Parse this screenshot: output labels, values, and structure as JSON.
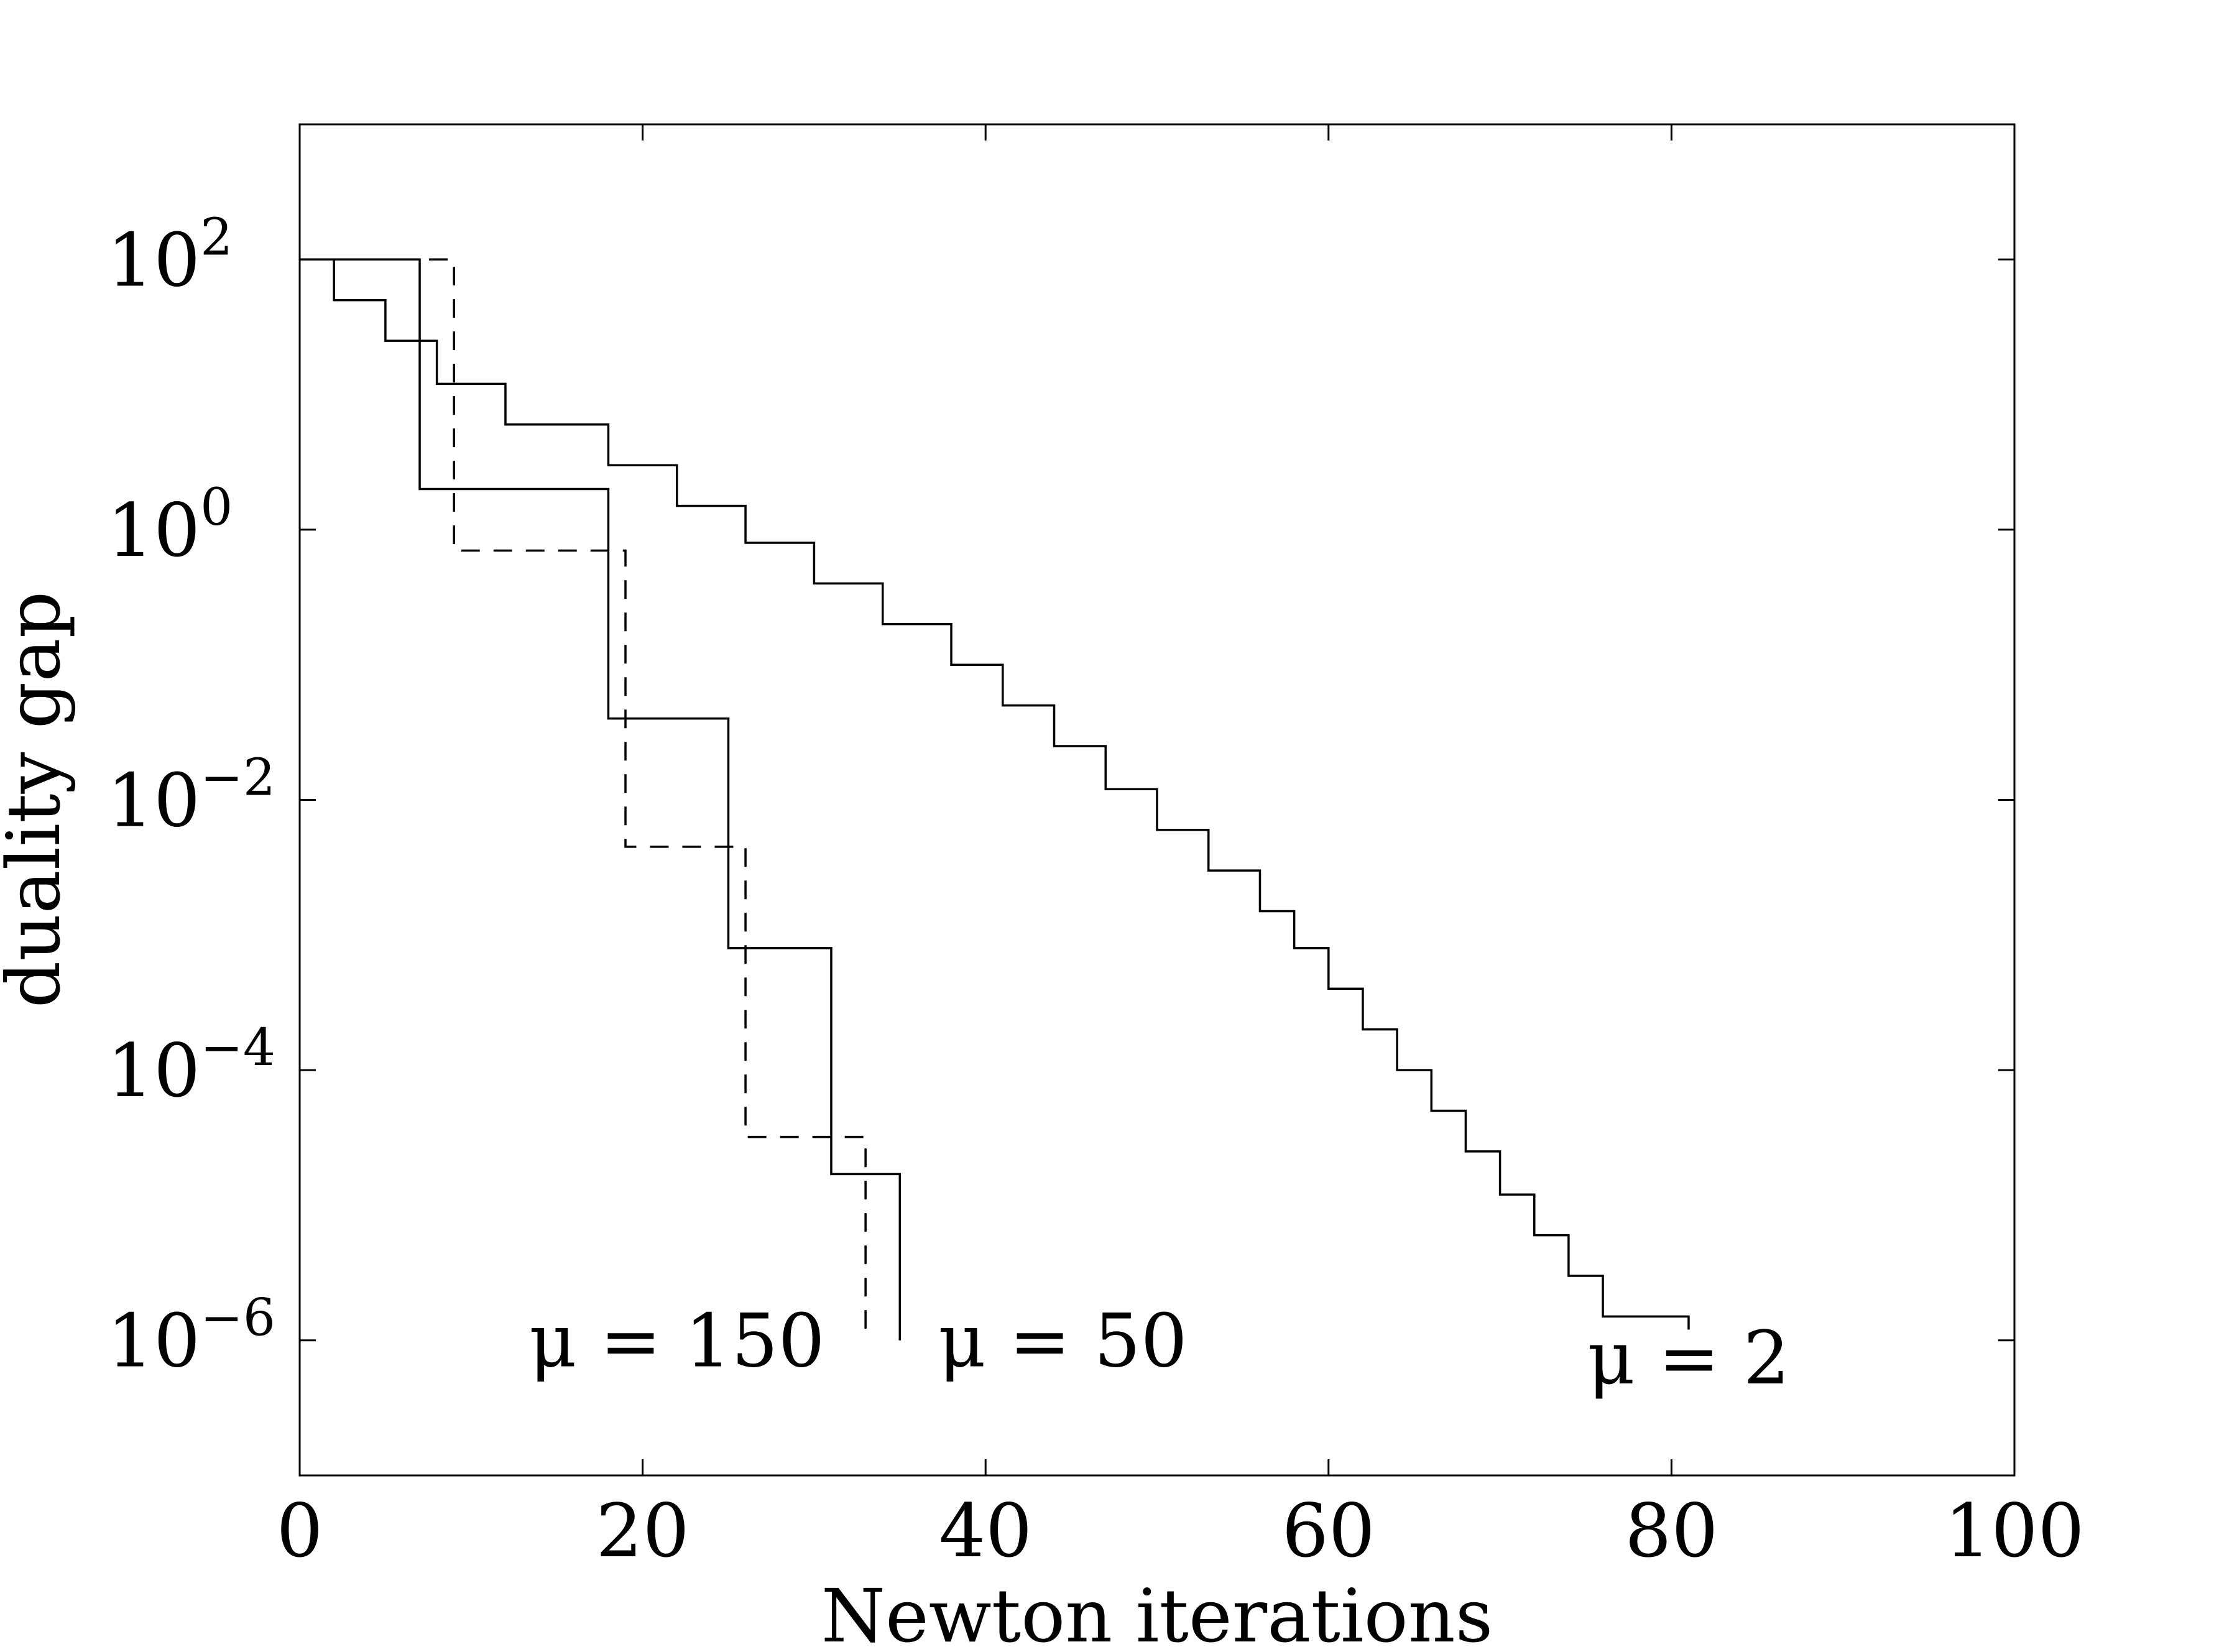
{
  "chart_data": {
    "type": "line",
    "title": "",
    "xlabel": "Newton iterations",
    "ylabel": "duality gap",
    "xlim": [
      0,
      100
    ],
    "ylim": [
      1e-07,
      1000.0
    ],
    "yscale": "log",
    "grid": false,
    "x_ticks": [
      0,
      20,
      40,
      60,
      80,
      100
    ],
    "x_tick_labels": [
      "0",
      "20",
      "40",
      "60",
      "80",
      "100"
    ],
    "y_ticks": [
      {
        "value": 1e-06,
        "base": "10",
        "exp": "−6"
      },
      {
        "value": 0.0001,
        "base": "10",
        "exp": "−4"
      },
      {
        "value": 0.01,
        "base": "10",
        "exp": "−2"
      },
      {
        "value": 1,
        "base": "10",
        "exp": "0"
      },
      {
        "value": 100,
        "base": "10",
        "exp": "2"
      }
    ],
    "series": [
      {
        "dash": "dashed",
        "label": "μ = 150",
        "label_x": 22,
        "label_y": 1e-06,
        "x": [
          0,
          9,
          19,
          26,
          33,
          33
        ],
        "y": [
          100,
          0.7,
          0.0045,
          3.2e-05,
          4.5e-06,
          1e-06
        ]
      },
      {
        "dash": "solid",
        "label": "μ = 50",
        "label_x": 44.5,
        "label_y": 1e-06,
        "x": [
          0,
          7,
          18,
          25,
          31,
          35,
          35
        ],
        "y": [
          100,
          2,
          0.04,
          0.0008,
          1.7e-05,
          1e-06,
          1e-06
        ]
      },
      {
        "dash": "solid",
        "label": "μ = 2",
        "label_x": 81,
        "label_y": 7.5e-07,
        "x": [
          0,
          2,
          5,
          8,
          12,
          18,
          22,
          26,
          30,
          34,
          38,
          41,
          44,
          47,
          50,
          53,
          56,
          58,
          60,
          62,
          64,
          66,
          68,
          70,
          72,
          74,
          76,
          81,
          81
        ],
        "y": [
          100,
          50,
          25,
          12,
          6,
          3,
          1.5,
          0.8,
          0.4,
          0.2,
          0.1,
          0.05,
          0.025,
          0.012,
          0.006,
          0.003,
          0.0015,
          0.0008,
          0.0004,
          0.0002,
          0.0001,
          5e-05,
          2.5e-05,
          1.2e-05,
          6e-06,
          3e-06,
          1.5e-06,
          1.2e-06,
          1.2e-06
        ]
      }
    ]
  }
}
